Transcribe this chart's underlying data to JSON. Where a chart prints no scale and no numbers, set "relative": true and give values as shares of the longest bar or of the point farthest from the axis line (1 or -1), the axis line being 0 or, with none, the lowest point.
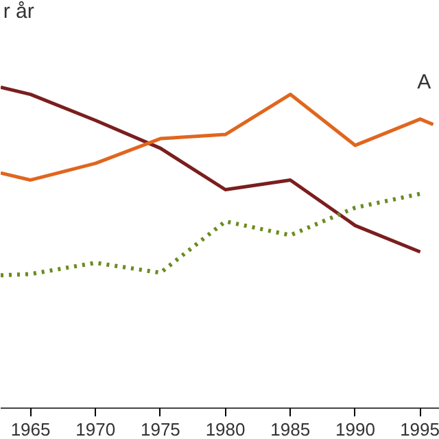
{
  "chart_data": {
    "type": "line",
    "relative": true,
    "x": [
      1962.7,
      1965,
      1970,
      1975,
      1980,
      1985,
      1990,
      1995
    ],
    "xlim": [
      1962.7,
      1996.5
    ],
    "xticks": [
      1965,
      1970,
      1975,
      1980,
      1985,
      1990,
      1995
    ],
    "series": [
      {
        "color": "#7b1e1e",
        "values": [
          1.0,
          0.978,
          0.897,
          0.81,
          0.681,
          0.711,
          0.569,
          0.487
        ]
      },
      {
        "color": "#e0661e",
        "x": [
          1962.7,
          1965,
          1970,
          1975,
          1980,
          1985,
          1990,
          1995,
          1996
        ],
        "values": [
          0.733,
          0.711,
          0.763,
          0.84,
          0.853,
          0.978,
          0.819,
          0.901,
          0.884
        ]
      },
      {
        "color": "#6a8c1e",
        "line_style": "dotted",
        "values": [
          0.414,
          0.418,
          0.453,
          0.422,
          0.582,
          0.539,
          0.625,
          0.668
        ]
      }
    ],
    "annotations": [
      "r år",
      "A"
    ],
    "grid": false
  }
}
